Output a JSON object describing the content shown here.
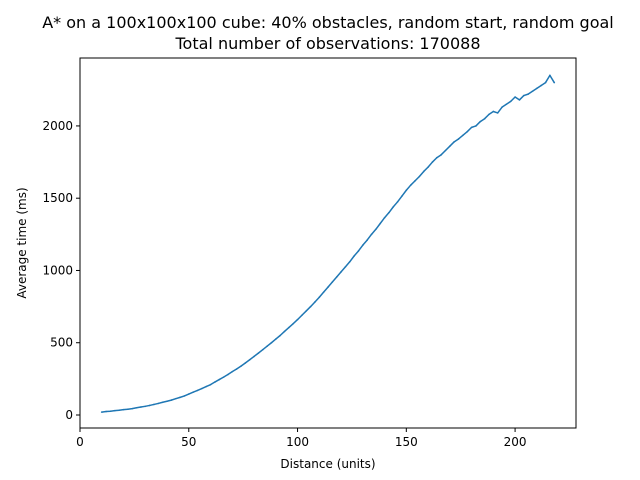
{
  "chart_data": {
    "type": "line",
    "title": "A* on a 100x100x100 cube: 40% obstacles, random start, random goal",
    "subtitle": "Total number of observations: 170088",
    "xlabel": "Distance (units)",
    "ylabel": "Average time (ms)",
    "xlim": [
      0,
      228
    ],
    "ylim": [
      -90,
      2470
    ],
    "xticks": [
      0,
      50,
      100,
      150,
      200
    ],
    "yticks": [
      0,
      500,
      1000,
      1500,
      2000
    ],
    "grid": false,
    "line_color": "#1f77b4",
    "series": [
      {
        "x": [
          10,
          12,
          14,
          16,
          18,
          20,
          22,
          24,
          26,
          28,
          30,
          32,
          34,
          36,
          38,
          40,
          42,
          44,
          46,
          48,
          50,
          52,
          54,
          56,
          58,
          60,
          62,
          64,
          66,
          68,
          70,
          72,
          74,
          76,
          78,
          80,
          82,
          84,
          86,
          88,
          90,
          92,
          94,
          96,
          98,
          100,
          102,
          104,
          106,
          108,
          110,
          112,
          114,
          116,
          118,
          120,
          122,
          124,
          126,
          128,
          130,
          132,
          134,
          136,
          138,
          140,
          142,
          144,
          146,
          148,
          150,
          152,
          154,
          156,
          158,
          160,
          162,
          164,
          166,
          168,
          170,
          172,
          174,
          176,
          178,
          180,
          182,
          184,
          186,
          188,
          190,
          192,
          194,
          196,
          198,
          200,
          202,
          204,
          206,
          208,
          210,
          212,
          214,
          216,
          218
        ],
        "y": [
          20,
          24,
          26,
          30,
          33,
          37,
          40,
          44,
          50,
          55,
          60,
          66,
          73,
          80,
          88,
          95,
          103,
          113,
          122,
          132,
          145,
          158,
          170,
          183,
          197,
          210,
          228,
          245,
          262,
          280,
          300,
          318,
          338,
          360,
          382,
          405,
          428,
          452,
          476,
          500,
          525,
          550,
          578,
          605,
          632,
          660,
          690,
          720,
          750,
          782,
          815,
          850,
          885,
          920,
          955,
          990,
          1025,
          1060,
          1100,
          1135,
          1175,
          1210,
          1250,
          1285,
          1325,
          1365,
          1400,
          1440,
          1475,
          1515,
          1555,
          1590,
          1620,
          1650,
          1685,
          1715,
          1750,
          1780,
          1800,
          1830,
          1860,
          1890,
          1910,
          1935,
          1960,
          1990,
          2000,
          2030,
          2050,
          2080,
          2100,
          2090,
          2130,
          2150,
          2170,
          2200,
          2180,
          2210,
          2220,
          2240,
          2260,
          2280,
          2300,
          2350,
          2300
        ]
      }
    ]
  }
}
